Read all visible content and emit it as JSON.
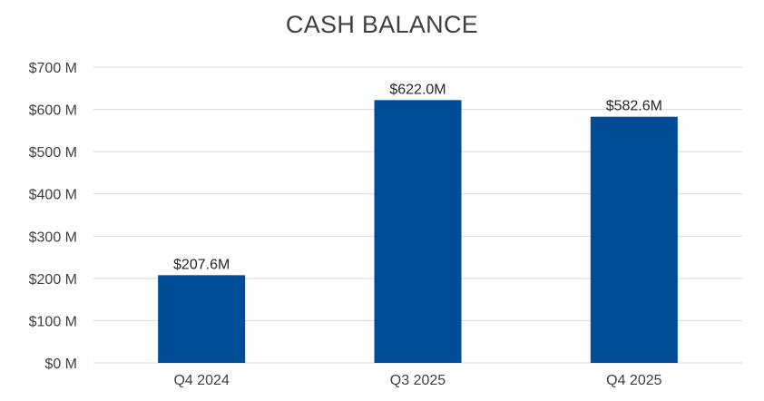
{
  "chart_data": {
    "type": "bar",
    "title": "CASH BALANCE",
    "categories": [
      "Q4 2024",
      "Q3 2025",
      "Q4 2025"
    ],
    "values": [
      207.6,
      622.0,
      582.6
    ],
    "data_labels": [
      "$207.6M",
      "$622.0M",
      "$582.6M"
    ],
    "y_ticks": [
      0,
      100,
      200,
      300,
      400,
      500,
      600,
      700
    ],
    "y_tick_labels": [
      "$0 M",
      "$100 M",
      "$200 M",
      "$300 M",
      "$400 M",
      "$500 M",
      "$600 M",
      "$700 M"
    ],
    "ylim": [
      0,
      700
    ],
    "xlabel": "",
    "ylabel": "",
    "grid": true,
    "legend": "none",
    "colors": {
      "bar": "#004c97",
      "grid": "#d9d9d9",
      "text": "#404040"
    }
  }
}
